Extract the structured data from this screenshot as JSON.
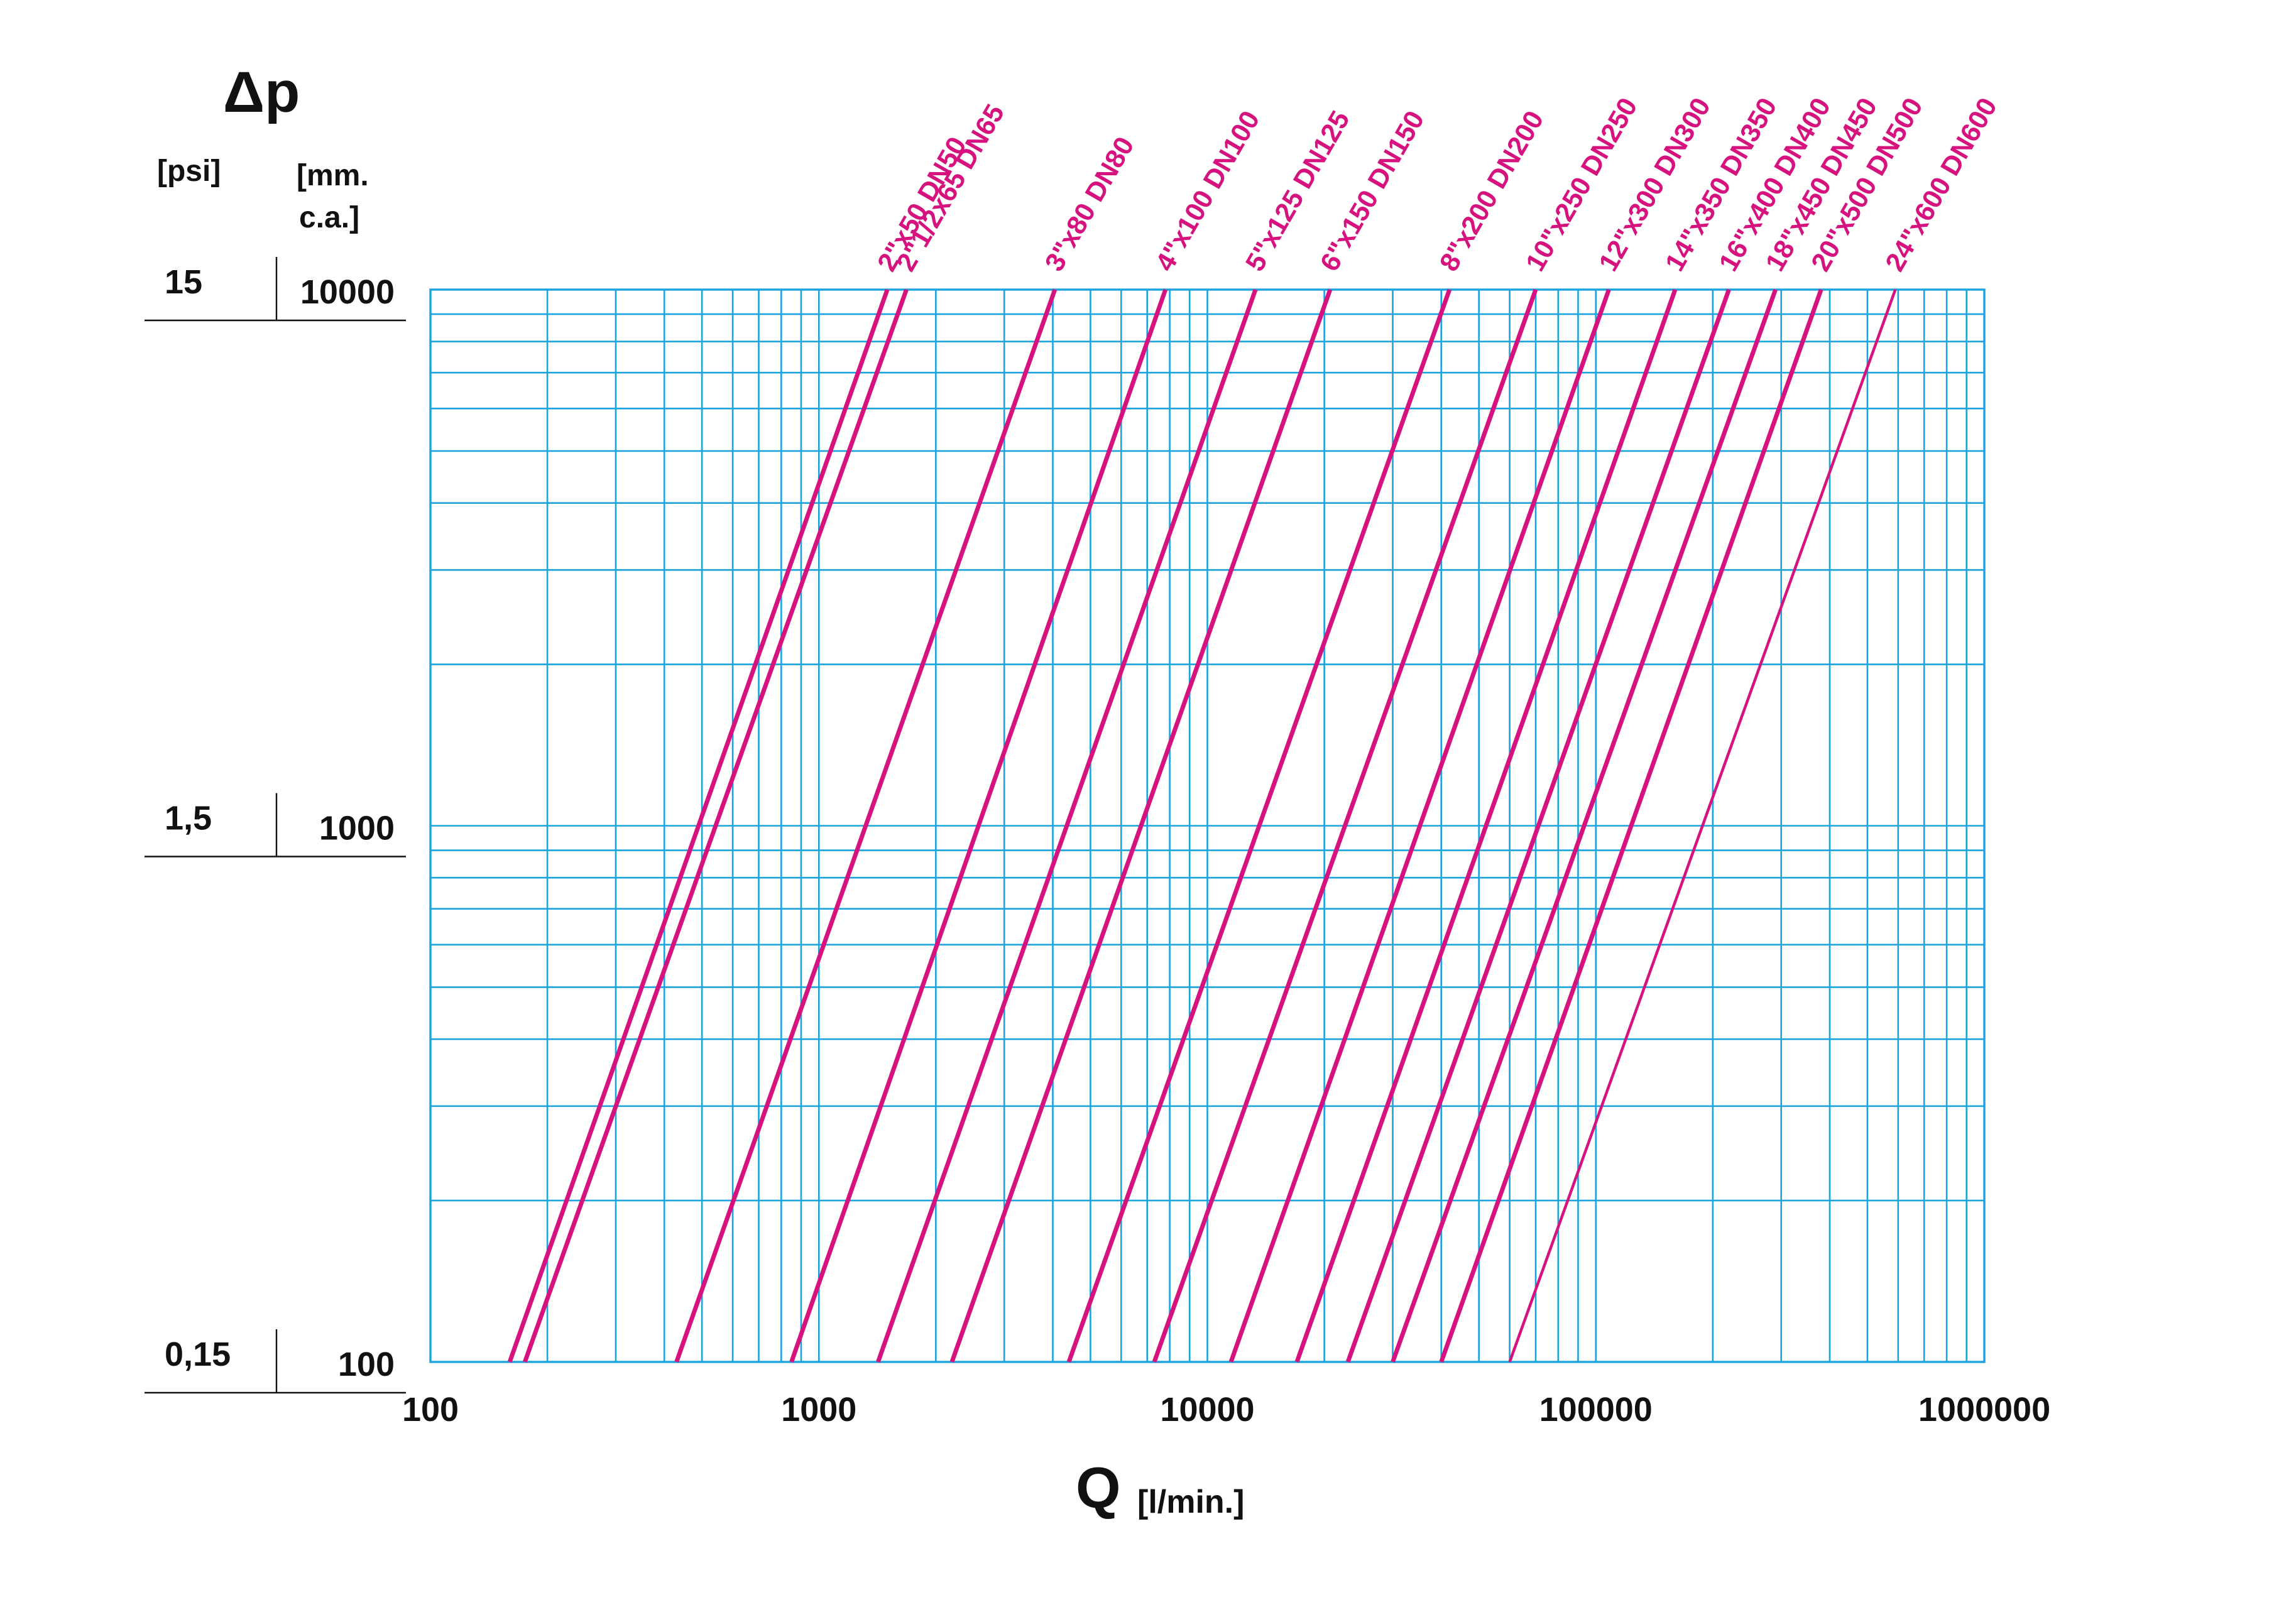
{
  "chart_data": {
    "type": "line",
    "x_scale": "log",
    "y_scale": "log",
    "xlim": [
      100,
      1000000
    ],
    "ylim": [
      100,
      10000
    ],
    "grid": true,
    "colors": {
      "grid": "#1aa3dc",
      "series": "#d6127e",
      "text": "#111111"
    },
    "ylabel": "Δp",
    "ylabel_units": {
      "psi": "[psi]",
      "mmca_line1": "[mm.",
      "mmca_line2": "c.a.]"
    },
    "xlabel": "Q",
    "xlabel_unit": "[l/min.]",
    "x_ticks": [
      {
        "value": 100,
        "label": "100"
      },
      {
        "value": 1000,
        "label": "1000"
      },
      {
        "value": 10000,
        "label": "10000"
      },
      {
        "value": 100000,
        "label": "100000"
      },
      {
        "value": 1000000,
        "label": "1000000"
      }
    ],
    "y_ticks": [
      {
        "value": 10000,
        "label": "10000",
        "psi_label": "15"
      },
      {
        "value": 1000,
        "label": "1000",
        "psi_label": "1,5"
      },
      {
        "value": 100,
        "label": "100",
        "psi_label": "0,15"
      }
    ],
    "series": [
      {
        "name": "2\"x50 DN50",
        "x": [
          160,
          1500
        ],
        "y": [
          100,
          10000
        ]
      },
      {
        "name": "2\"1/2x65 DN65",
        "x": [
          175,
          1680
        ],
        "y": [
          100,
          10000
        ]
      },
      {
        "name": "3\"x80 DN80",
        "x": [
          430,
          4050
        ],
        "y": [
          100,
          10000
        ]
      },
      {
        "name": "4\"x100 DN100",
        "x": [
          850,
          7800
        ],
        "y": [
          100,
          10000
        ]
      },
      {
        "name": "5\"x125 DN125",
        "x": [
          1420,
          13300
        ],
        "y": [
          100,
          10000
        ]
      },
      {
        "name": "6\"x150 DN150",
        "x": [
          2200,
          20700
        ],
        "y": [
          100,
          10000
        ]
      },
      {
        "name": "8\"x200  DN200",
        "x": [
          4400,
          42000
        ],
        "y": [
          100,
          10000
        ]
      },
      {
        "name": "10\"x250 DN250",
        "x": [
          7300,
          70000
        ],
        "y": [
          100,
          10000
        ]
      },
      {
        "name": "12\"x300 DN300",
        "x": [
          11500,
          108000
        ],
        "y": [
          100,
          10000
        ]
      },
      {
        "name": "14\"x350 DN350",
        "x": [
          17000,
          160000
        ],
        "y": [
          100,
          10000
        ]
      },
      {
        "name": "16\"x400 DN400",
        "x": [
          23000,
          220000
        ],
        "y": [
          100,
          10000
        ]
      },
      {
        "name": "18\"x450 DN450",
        "x": [
          30000,
          290000
        ],
        "y": [
          100,
          10000
        ]
      },
      {
        "name": "20\"x500 DN500",
        "x": [
          40000,
          380000
        ],
        "y": [
          100,
          10000
        ]
      },
      {
        "name": "24\"x600 DN600",
        "x": [
          60000,
          590000
        ],
        "y": [
          100,
          10000
        ]
      }
    ]
  }
}
